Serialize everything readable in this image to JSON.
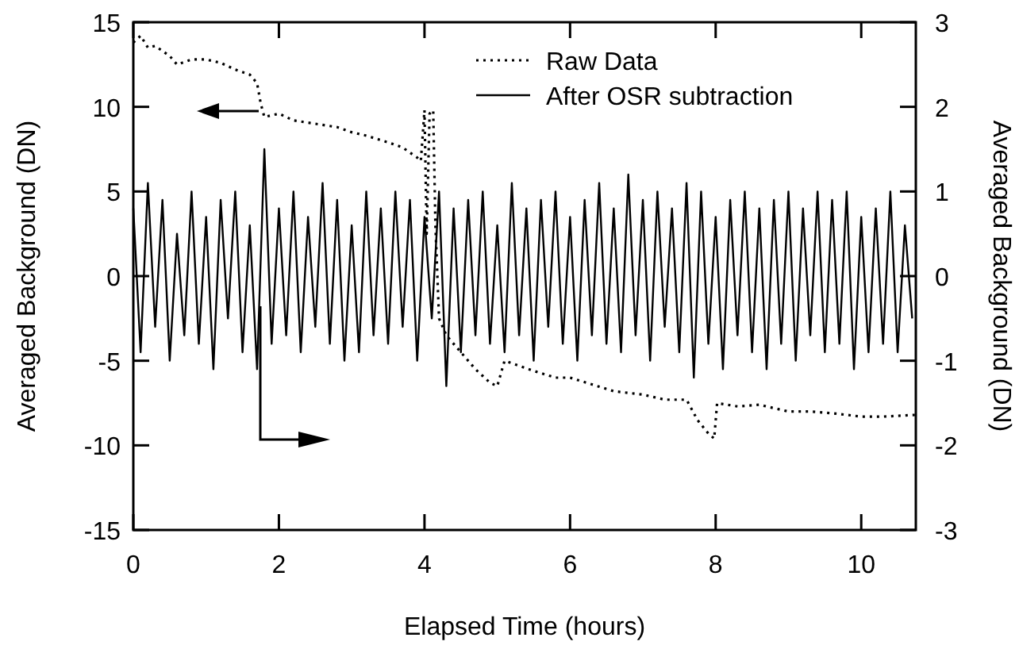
{
  "chart_data": {
    "type": "line",
    "xlabel": "Elapsed Time (hours)",
    "ylabel": "Averaged Background (DN)",
    "y2label": "Averaged Background (DN)",
    "xlim": [
      0,
      10.75
    ],
    "xticks": [
      0,
      2,
      4,
      6,
      8,
      10
    ],
    "ylim": [
      -15,
      15
    ],
    "yticks": [
      -15,
      -10,
      -5,
      0,
      5,
      10,
      15
    ],
    "y2lim": [
      -3,
      3
    ],
    "y2ticks": [
      -3,
      -2,
      -1,
      0,
      1,
      2,
      3
    ],
    "grid": false,
    "legend": "top right",
    "series": [
      {
        "name": "Raw Data",
        "color": "#000000",
        "line_style": "dotted",
        "x": [
          0,
          0.1,
          0.2,
          0.3,
          0.5,
          0.6,
          0.8,
          1.0,
          1.2,
          1.4,
          1.6,
          1.7,
          1.75,
          1.8,
          2.0,
          2.2,
          2.5,
          2.8,
          3.0,
          3.2,
          3.5,
          3.7,
          3.9,
          3.95,
          4.0,
          4.03,
          4.07,
          4.12,
          4.15,
          4.2,
          4.3,
          4.5,
          4.7,
          4.9,
          5.0,
          5.1,
          5.3,
          5.5,
          5.8,
          6.0,
          6.3,
          6.6,
          7.0,
          7.3,
          7.6,
          7.75,
          7.9,
          7.98,
          8.02,
          8.3,
          8.6,
          9.0,
          9.3,
          9.6,
          10.0,
          10.3,
          10.75
        ],
        "values": [
          13.8,
          14.2,
          13.5,
          13.6,
          13.0,
          12.5,
          12.8,
          12.8,
          12.6,
          12.2,
          11.9,
          11.4,
          10.2,
          9.4,
          9.6,
          9.2,
          9.0,
          8.8,
          8.5,
          8.3,
          7.9,
          7.6,
          7.0,
          6.8,
          9.8,
          2.5,
          9.6,
          9.8,
          3.0,
          -2.5,
          -3.5,
          -4.5,
          -5.5,
          -6.3,
          -6.5,
          -5.0,
          -5.3,
          -5.6,
          -6.0,
          -6.0,
          -6.4,
          -6.8,
          -7.0,
          -7.3,
          -7.3,
          -8.5,
          -9.3,
          -9.6,
          -7.5,
          -7.7,
          -7.6,
          -8.0,
          -8.0,
          -8.1,
          -8.3,
          -8.3,
          -8.2
        ]
      },
      {
        "name": "After OSR subtraction",
        "color": "#000000",
        "line_style": "solid",
        "axis": "y2",
        "x": [
          0,
          0.1,
          0.2,
          0.3,
          0.4,
          0.5,
          0.6,
          0.7,
          0.8,
          0.9,
          1,
          1.1,
          1.2,
          1.3,
          1.4,
          1.5,
          1.6,
          1.7,
          1.8,
          1.9,
          2,
          2.1,
          2.2,
          2.3,
          2.4,
          2.5,
          2.6,
          2.7,
          2.8,
          2.9,
          3,
          3.1,
          3.2,
          3.3,
          3.4,
          3.5,
          3.6,
          3.7,
          3.8,
          3.9,
          4,
          4.1,
          4.2,
          4.3,
          4.4,
          4.5,
          4.6,
          4.7,
          4.8,
          4.9,
          5,
          5.1,
          5.2,
          5.3,
          5.4,
          5.5,
          5.6,
          5.7,
          5.8,
          5.9,
          6,
          6.1,
          6.2,
          6.3,
          6.4,
          6.5,
          6.6,
          6.7,
          6.8,
          6.9,
          7,
          7.1,
          7.2,
          7.3,
          7.4,
          7.5,
          7.6,
          7.7,
          7.8,
          7.9,
          8,
          8.1,
          8.2,
          8.3,
          8.4,
          8.5,
          8.6,
          8.7,
          8.8,
          8.9,
          9,
          9.1,
          9.2,
          9.3,
          9.4,
          9.5,
          9.6,
          9.7,
          9.8,
          9.9,
          10,
          10.1,
          10.2,
          10.3,
          10.4,
          10.5,
          10.6,
          10.7
        ],
        "values": [
          0.8,
          -0.9,
          1.1,
          -0.6,
          0.9,
          -1.0,
          0.5,
          -0.7,
          1.0,
          -0.8,
          0.7,
          -1.1,
          0.9,
          -0.5,
          1.0,
          -0.9,
          0.6,
          -1.1,
          1.5,
          -0.8,
          0.8,
          -0.7,
          1.0,
          -0.9,
          0.7,
          -0.6,
          1.1,
          -0.8,
          0.9,
          -1.0,
          0.6,
          -0.9,
          1.0,
          -0.7,
          0.8,
          -0.8,
          1.0,
          -0.6,
          0.9,
          -1.0,
          0.7,
          -0.5,
          1.0,
          -1.3,
          0.8,
          -0.9,
          0.9,
          -0.7,
          1.0,
          -0.8,
          0.6,
          -0.9,
          1.1,
          -0.7,
          0.8,
          -1.0,
          0.9,
          -0.6,
          1.0,
          -0.8,
          0.7,
          -1.0,
          0.9,
          -0.7,
          1.1,
          -0.8,
          0.8,
          -0.9,
          1.2,
          -0.7,
          0.9,
          -1.0,
          1.0,
          -0.6,
          0.8,
          -0.9,
          1.1,
          -1.2,
          1.0,
          -0.8,
          0.7,
          -1.1,
          0.9,
          -0.7,
          1.0,
          -0.9,
          0.8,
          -1.1,
          0.9,
          -0.8,
          1.0,
          -1.0,
          0.8,
          -0.7,
          1.0,
          -0.9,
          0.9,
          -0.8,
          1.0,
          -1.1,
          0.7,
          -0.9,
          0.8,
          -0.8,
          1.0,
          -0.9,
          0.6,
          -0.5
        ]
      }
    ]
  }
}
